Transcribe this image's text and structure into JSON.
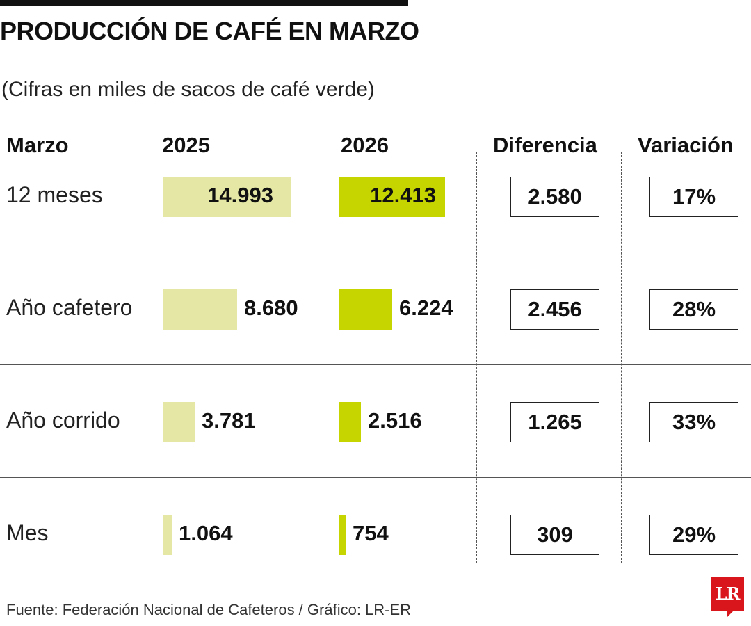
{
  "title": "PRODUCCIÓN DE CAFÉ EN MARZO",
  "subtitle": "(Cifras en miles de sacos de café verde)",
  "source": "Fuente: Federación Nacional de Cafeteros / Gráfico: LR-ER",
  "logo": "LR",
  "colors": {
    "bar_2025": "#e4e8a4",
    "bar_2026": "#c6d400",
    "logo_red": "#d8161c",
    "text": "#111111"
  },
  "chart_data": {
    "type": "bar",
    "title": "PRODUCCIÓN DE CAFÉ EN MARZO",
    "subtitle": "(Cifras en miles de sacos de café verde)",
    "columns": [
      "Marzo",
      "2025",
      "2026",
      "Diferencia",
      "Variación"
    ],
    "categories": [
      "12 meses",
      "Año cafetero",
      "Año corrido",
      "Mes"
    ],
    "series": [
      {
        "name": "2025",
        "values": [
          14993,
          8680,
          3781,
          1064
        ],
        "labels": [
          "14.993",
          "8.680",
          "3.781",
          "1.064"
        ]
      },
      {
        "name": "2026",
        "values": [
          12413,
          6224,
          2516,
          754
        ],
        "labels": [
          "12.413",
          "6.224",
          "2.516",
          "754"
        ]
      }
    ],
    "diferencia": [
      "2.580",
      "2.456",
      "1.265",
      "309"
    ],
    "variacion": [
      "17%",
      "28%",
      "33%",
      "29%"
    ],
    "grid": false,
    "legend": "none"
  }
}
